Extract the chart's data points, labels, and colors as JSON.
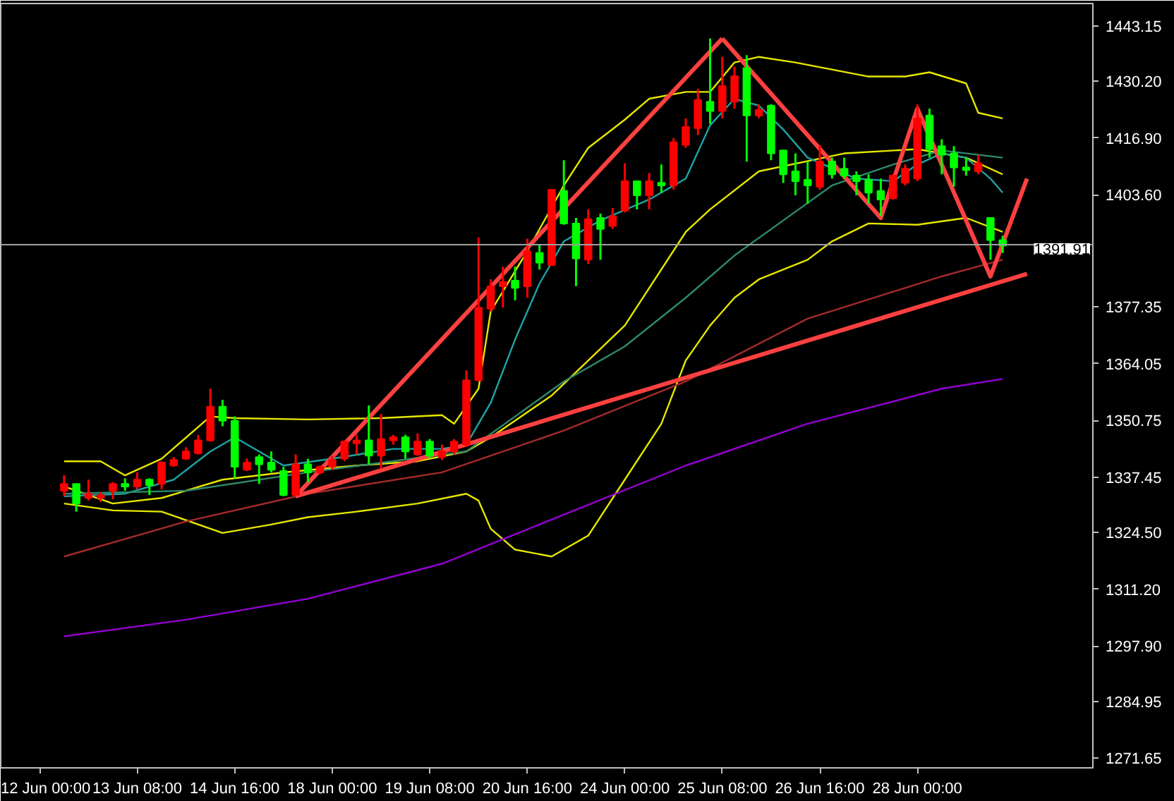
{
  "chart_data": {
    "type": "candlestick",
    "categories": [
      "12 Jun 00:00",
      null,
      null,
      null,
      null,
      null,
      null,
      null,
      "13 Jun 08:00",
      null,
      null,
      null,
      null,
      null,
      null,
      null,
      "14 Jun 16:00",
      null,
      null,
      null,
      null,
      null,
      null,
      null,
      "18 Jun 00:00",
      null,
      null,
      null,
      null,
      null,
      null,
      null,
      "19 Jun 08:00",
      null,
      null,
      null,
      null,
      null,
      null,
      null,
      "20 Jun 16:00",
      null,
      null,
      null,
      null,
      null,
      null,
      null,
      "24 Jun 00:00",
      null,
      null,
      null,
      null,
      null,
      null,
      null,
      "25 Jun 08:00",
      null,
      null,
      null,
      null,
      null,
      null,
      null,
      "26 Jun 16:00",
      null,
      null,
      null,
      null,
      null,
      null,
      null,
      "28 Jun 00:00",
      null,
      null,
      null,
      null,
      null,
      null,
      null,
      null,
      null
    ],
    "ohlc": [
      null,
      null,
      [
        1334.3,
        1337.9,
        1333.0,
        1335.9
      ],
      [
        1335.9,
        1335.9,
        1329.4,
        1331.3
      ],
      [
        1332.6,
        1336.9,
        1332.0,
        1333.6
      ],
      [
        1332.6,
        1334.0,
        1331.7,
        1333.3
      ],
      [
        1334.3,
        1336.3,
        1332.3,
        1335.9
      ],
      [
        1335.9,
        1337.2,
        1334.3,
        1335.3
      ],
      [
        1335.3,
        1338.6,
        1334.6,
        1336.9
      ],
      [
        1336.9,
        1337.2,
        1333.3,
        1335.6
      ],
      [
        1335.9,
        1341.2,
        1334.6,
        1340.9
      ],
      [
        1340.2,
        1342.2,
        1339.9,
        1341.5
      ],
      [
        1341.8,
        1344.5,
        1341.5,
        1343.5
      ],
      [
        1343.1,
        1347.4,
        1342.8,
        1346.1
      ],
      [
        1346.1,
        1358.2,
        1345.8,
        1354.0
      ],
      [
        1354.0,
        1355.6,
        1349.4,
        1350.7
      ],
      [
        1350.7,
        1351.7,
        1337.2,
        1339.9
      ],
      [
        1339.2,
        1341.8,
        1338.9,
        1340.9
      ],
      [
        1342.2,
        1342.8,
        1335.9,
        1340.5
      ],
      [
        1340.9,
        1343.5,
        1338.6,
        1339.2
      ],
      [
        1338.9,
        1339.9,
        1333.0,
        1333.3
      ],
      [
        1333.3,
        1342.8,
        1333.3,
        1340.5
      ],
      [
        1340.5,
        1341.8,
        1336.3,
        1338.6
      ],
      [
        1338.6,
        1340.2,
        1338.2,
        1339.9
      ],
      [
        1339.9,
        1342.5,
        1339.2,
        1341.5
      ],
      [
        1341.8,
        1346.1,
        1341.2,
        1345.8
      ],
      [
        1345.4,
        1347.4,
        1342.8,
        1346.1
      ],
      [
        1346.1,
        1354.3,
        1340.5,
        1342.5
      ],
      [
        1342.5,
        1352.3,
        1339.5,
        1346.4
      ],
      [
        1346.1,
        1347.4,
        1345.1,
        1346.8
      ],
      [
        1346.8,
        1347.4,
        1341.8,
        1343.5
      ],
      [
        1342.8,
        1347.7,
        1342.5,
        1345.8
      ],
      [
        1345.8,
        1346.4,
        1341.8,
        1342.5
      ],
      [
        1342.2,
        1345.1,
        1341.5,
        1343.5
      ],
      [
        1343.5,
        1346.4,
        1342.8,
        1345.8
      ],
      [
        1345.1,
        1362.5,
        1344.5,
        1360.2
      ],
      [
        1360.2,
        1393.6,
        1359.9,
        1377.2
      ],
      [
        1376.9,
        1383.8,
        1376.3,
        1382.2
      ],
      [
        1382.2,
        1386.8,
        1377.2,
        1383.2
      ],
      [
        1383.5,
        1386.8,
        1378.9,
        1381.8
      ],
      [
        1382.2,
        1393.3,
        1379.5,
        1390.4
      ],
      [
        1390.0,
        1392.0,
        1386.1,
        1387.7
      ],
      [
        1387.1,
        1404.8,
        1387.1,
        1404.8
      ],
      [
        1404.5,
        1411.7,
        1396.6,
        1396.9
      ],
      [
        1396.9,
        1398.2,
        1382.2,
        1388.7
      ],
      [
        1388.4,
        1400.2,
        1387.4,
        1397.9
      ],
      [
        1398.2,
        1399.2,
        1388.4,
        1395.6
      ],
      [
        1396.3,
        1400.5,
        1395.6,
        1398.6
      ],
      [
        1399.9,
        1411.0,
        1399.5,
        1406.8
      ],
      [
        1406.8,
        1406.8,
        1400.2,
        1403.5
      ],
      [
        1403.5,
        1408.7,
        1400.2,
        1406.8
      ],
      [
        1406.4,
        1410.7,
        1404.1,
        1405.8
      ],
      [
        1405.8,
        1416.9,
        1404.8,
        1415.9
      ],
      [
        1415.3,
        1421.5,
        1414.6,
        1419.5
      ],
      [
        1419.2,
        1428.4,
        1417.6,
        1425.8
      ],
      [
        1425.4,
        1440.2,
        1420.2,
        1423.2
      ],
      [
        1423.2,
        1435.9,
        1421.5,
        1429.1
      ],
      [
        1425.4,
        1433.6,
        1423.8,
        1431.4
      ],
      [
        1433.3,
        1436.3,
        1411.4,
        1422.2
      ],
      [
        1422.2,
        1424.8,
        1421.5,
        1423.5
      ],
      [
        1424.5,
        1424.8,
        1411.7,
        1413.3
      ],
      [
        1414.0,
        1414.0,
        1406.4,
        1408.4
      ],
      [
        1409.1,
        1413.3,
        1403.5,
        1406.8
      ],
      [
        1407.1,
        1411.4,
        1401.5,
        1405.8
      ],
      [
        1405.5,
        1415.3,
        1404.8,
        1411.4
      ],
      [
        1411.4,
        1412.3,
        1407.4,
        1408.4
      ],
      [
        1409.7,
        1412.3,
        1407.4,
        1408.1
      ],
      [
        1408.1,
        1409.1,
        1403.5,
        1406.8
      ],
      [
        1407.1,
        1408.4,
        1401.5,
        1404.1
      ],
      [
        1404.5,
        1407.4,
        1398.6,
        1402.5
      ],
      [
        1402.8,
        1408.4,
        1402.5,
        1408.1
      ],
      [
        1406.4,
        1410.7,
        1405.8,
        1409.7
      ],
      [
        1407.4,
        1424.8,
        1406.8,
        1421.5
      ],
      [
        1422.2,
        1423.8,
        1412.3,
        1414.3
      ],
      [
        1415.0,
        1416.6,
        1408.4,
        1413.0
      ],
      [
        1413.3,
        1415.0,
        1405.5,
        1410.0
      ],
      [
        1410.0,
        1412.3,
        1408.1,
        1409.4
      ],
      [
        1409.1,
        1413.0,
        1408.4,
        1411.0
      ],
      [
        1398.2,
        1398.2,
        1388.4,
        1393.0
      ],
      [
        1393.0,
        1394.0,
        1390.0,
        1391.7
      ],
      null,
      null
    ],
    "colors": [
      null,
      null,
      "#ff0000",
      "#00ff00",
      "#ff0000",
      "#ff0000",
      "#ff0000",
      "#00ff00",
      "#ff0000",
      "#00ff00",
      "#ff0000",
      "#ff0000",
      "#ff0000",
      "#ff0000",
      "#ff0000",
      "#00ff00",
      "#00ff00",
      "#ff0000",
      "#00ff00",
      "#00ff00",
      "#00ff00",
      "#ff0000",
      "#00ff00",
      "#ff0000",
      "#ff0000",
      "#ff0000",
      "#ff0000",
      "#00ff00",
      "#ff0000",
      "#ff0000",
      "#00ff00",
      "#ff0000",
      "#00ff00",
      "#ff0000",
      "#ff0000",
      "#ff0000",
      "#ff0000",
      "#ff0000",
      "#ff0000",
      "#00ff00",
      "#ff0000",
      "#00ff00",
      "#ff0000",
      "#00ff00",
      "#00ff00",
      "#ff0000",
      "#00ff00",
      "#ff0000",
      "#ff0000",
      "#00ff00",
      "#ff0000",
      "#00ff00",
      "#ff0000",
      "#ff0000",
      "#ff0000",
      "#00ff00",
      "#ff0000",
      "#ff0000",
      "#00ff00",
      "#ff0000",
      "#00ff00",
      "#00ff00",
      "#00ff00",
      "#00ff00",
      "#ff0000",
      "#00ff00",
      "#00ff00",
      "#00ff00",
      "#00ff00",
      "#00ff00",
      "#ff0000",
      "#ff0000",
      "#ff0000",
      "#00ff00",
      "#00ff00",
      "#00ff00",
      "#00ff00",
      "#ff0000",
      "#00ff00",
      "#00ff00",
      null,
      null
    ],
    "series": [
      {
        "type": "line",
        "color": "#e6e600",
        "values": [
          null,
          null,
          1341.2,
          null,
          null,
          1341.2,
          null,
          1337.9,
          null,
          null,
          1341.8,
          null,
          null,
          null,
          1351.7,
          null,
          1351.3,
          null,
          null,
          null,
          null,
          null,
          1351.0,
          null,
          null,
          null,
          null,
          null,
          1351.3,
          null,
          null,
          null,
          null,
          1352.0,
          1350.0,
          null,
          1358.2,
          1376.3,
          null,
          null,
          1390.4,
          null,
          null,
          1405.8,
          null,
          1414.6,
          null,
          null,
          1421.2,
          null,
          1426.1,
          null,
          null,
          1427.7,
          null,
          1427.7,
          null,
          1434.6,
          null,
          1435.9,
          null,
          null,
          1434.6,
          null,
          null,
          null,
          null,
          null,
          1431.3,
          null,
          null,
          1431.3,
          null,
          1432.3,
          null,
          null,
          1429.7,
          1422.8,
          null,
          1421.5,
          null,
          null
        ]
      },
      {
        "type": "line",
        "color": "#e6e600",
        "values": [
          null,
          null,
          1335.3,
          null,
          null,
          null,
          1331.3,
          null,
          null,
          null,
          1332.6,
          null,
          null,
          null,
          null,
          1336.9,
          null,
          null,
          null,
          null,
          1338.6,
          null,
          null,
          null,
          null,
          null,
          1340.2,
          null,
          null,
          null,
          null,
          1341.2,
          null,
          null,
          null,
          1343.5,
          null,
          1346.8,
          null,
          null,
          null,
          null,
          1356.6,
          null,
          null,
          null,
          null,
          null,
          1373.0,
          null,
          null,
          null,
          null,
          1394.9,
          null,
          1400.2,
          null,
          null,
          null,
          1409.1,
          null,
          null,
          null,
          null,
          null,
          null,
          1413.3,
          null,
          null,
          null,
          null,
          null,
          1414.3,
          null,
          null,
          null,
          1412.3,
          null,
          null,
          1408.4,
          null,
          null
        ]
      },
      {
        "type": "line",
        "color": "#e6e600",
        "values": [
          null,
          null,
          1331.3,
          null,
          null,
          null,
          1329.7,
          null,
          null,
          null,
          1329.4,
          null,
          null,
          null,
          null,
          1324.4,
          null,
          null,
          null,
          1326.4,
          null,
          null,
          1328.1,
          null,
          null,
          null,
          1329.4,
          null,
          null,
          null,
          null,
          1331.3,
          null,
          null,
          null,
          1333.6,
          1332.0,
          1325.4,
          null,
          1320.5,
          null,
          null,
          1318.9,
          null,
          null,
          1323.8,
          null,
          null,
          1336.9,
          null,
          null,
          1350.0,
          null,
          1364.8,
          null,
          1373.0,
          null,
          1379.5,
          null,
          1383.8,
          null,
          null,
          null,
          1388.4,
          null,
          1392.7,
          null,
          null,
          1396.9,
          null,
          null,
          null,
          1396.6,
          null,
          null,
          null,
          1398.2,
          null,
          null,
          1394.9,
          null,
          null
        ]
      },
      {
        "type": "line",
        "color": "#1fa3a3",
        "values": [
          null,
          null,
          1333.0,
          null,
          null,
          null,
          null,
          1333.6,
          null,
          null,
          null,
          1336.9,
          null,
          null,
          1343.5,
          null,
          1346.8,
          null,
          1343.5,
          null,
          1340.2,
          null,
          null,
          null,
          1341.8,
          null,
          null,
          null,
          null,
          1344.1,
          null,
          null,
          null,
          1344.1,
          null,
          1345.1,
          null,
          1354.9,
          null,
          1369.7,
          null,
          1382.8,
          null,
          1392.7,
          null,
          null,
          1397.6,
          null,
          null,
          null,
          1402.5,
          null,
          null,
          1407.4,
          null,
          1419.9,
          null,
          1426.1,
          null,
          1424.5,
          null,
          1418.9,
          null,
          1412.3,
          null,
          null,
          null,
          1407.4,
          null,
          null,
          1406.8,
          null,
          1410.7,
          null,
          1413.3,
          null,
          1412.3,
          null,
          1407.4,
          1404.1,
          null,
          null
        ]
      },
      {
        "type": "line",
        "color": "#2e8a6a",
        "values": [
          null,
          null,
          1333.6,
          null,
          null,
          null,
          null,
          null,
          null,
          null,
          null,
          null,
          1334.3,
          null,
          null,
          null,
          null,
          null,
          null,
          null,
          null,
          null,
          1338.6,
          null,
          null,
          null,
          null,
          null,
          null,
          null,
          null,
          null,
          null,
          null,
          null,
          1343.5,
          null,
          null,
          null,
          1351.7,
          null,
          null,
          null,
          1359.9,
          null,
          null,
          null,
          null,
          1368.1,
          null,
          null,
          null,
          null,
          1379.5,
          null,
          null,
          null,
          1389.4,
          null,
          null,
          null,
          1397.6,
          null,
          null,
          null,
          1405.8,
          null,
          null,
          null,
          null,
          1410.7,
          null,
          null,
          null,
          1414.0,
          null,
          null,
          null,
          null,
          1412.3,
          null,
          null
        ]
      },
      {
        "type": "line",
        "color": "#a52a2a",
        "values": [
          null,
          null,
          1318.9,
          null,
          null,
          null,
          null,
          null,
          null,
          null,
          null,
          null,
          1327.1,
          null,
          null,
          null,
          null,
          null,
          null,
          null,
          null,
          null,
          1333.6,
          null,
          null,
          null,
          null,
          null,
          null,
          null,
          null,
          null,
          null,
          1338.6,
          null,
          null,
          null,
          null,
          null,
          null,
          null,
          null,
          null,
          1348.4,
          null,
          null,
          null,
          null,
          null,
          null,
          null,
          null,
          null,
          1359.9,
          null,
          null,
          null,
          null,
          null,
          null,
          null,
          null,
          null,
          1374.6,
          null,
          null,
          null,
          null,
          null,
          null,
          null,
          null,
          null,
          null,
          1384.5,
          null,
          null,
          null,
          null,
          1388.4,
          null,
          null
        ]
      },
      {
        "type": "line",
        "color": "#9400d3",
        "values": [
          null,
          null,
          1300.2,
          null,
          null,
          null,
          null,
          null,
          null,
          null,
          null,
          null,
          1304.1,
          null,
          null,
          null,
          null,
          null,
          null,
          null,
          null,
          null,
          1309.0,
          null,
          null,
          null,
          null,
          null,
          null,
          null,
          null,
          null,
          null,
          1317.2,
          null,
          null,
          null,
          null,
          null,
          null,
          null,
          null,
          null,
          1328.7,
          null,
          null,
          null,
          null,
          null,
          null,
          null,
          null,
          null,
          1340.2,
          null,
          null,
          null,
          null,
          null,
          null,
          null,
          null,
          null,
          1350.0,
          null,
          null,
          null,
          null,
          null,
          null,
          null,
          null,
          null,
          null,
          1358.2,
          null,
          null,
          null,
          null,
          1360.5,
          null,
          null
        ]
      },
      {
        "type": "line",
        "color": "#ff4040",
        "values": [
          null,
          null,
          null,
          null,
          null,
          null,
          null,
          null,
          null,
          null,
          null,
          null,
          null,
          null,
          null,
          null,
          null,
          null,
          null,
          null,
          null,
          1333.0,
          null,
          null,
          null,
          null,
          null,
          null,
          null,
          null,
          null,
          null,
          null,
          null,
          null,
          null,
          null,
          null,
          null,
          null,
          null,
          null,
          null,
          null,
          null,
          null,
          null,
          null,
          null,
          null,
          null,
          null,
          null,
          null,
          null,
          null,
          1440.2,
          null,
          null,
          null,
          null,
          null,
          null,
          null,
          null,
          null,
          null,
          null,
          null,
          null,
          null,
          null,
          null,
          null,
          null,
          null,
          null,
          null,
          null,
          null,
          null,
          null
        ]
      },
      {
        "type": "line",
        "color": "#ff4040",
        "values": [
          null,
          null,
          null,
          null,
          null,
          null,
          null,
          null,
          null,
          null,
          null,
          null,
          null,
          null,
          null,
          null,
          null,
          null,
          null,
          null,
          null,
          1333.0,
          null,
          null,
          null,
          null,
          null,
          null,
          null,
          null,
          null,
          null,
          null,
          null,
          null,
          null,
          null,
          null,
          null,
          null,
          null,
          null,
          null,
          null,
          null,
          null,
          null,
          null,
          null,
          null,
          null,
          null,
          null,
          null,
          null,
          null,
          null,
          null,
          null,
          null,
          null,
          null,
          null,
          null,
          null,
          null,
          null,
          null,
          null,
          null,
          null,
          null,
          null,
          null,
          null,
          null,
          null,
          null,
          null,
          null,
          null,
          1385.1
        ]
      },
      {
        "type": "line",
        "color": "#ff4040",
        "values": [
          null,
          null,
          null,
          null,
          null,
          null,
          null,
          null,
          null,
          null,
          null,
          null,
          null,
          null,
          null,
          null,
          null,
          null,
          null,
          null,
          null,
          null,
          null,
          null,
          null,
          null,
          null,
          null,
          null,
          null,
          null,
          null,
          null,
          null,
          null,
          null,
          null,
          null,
          null,
          null,
          null,
          null,
          null,
          null,
          null,
          null,
          null,
          null,
          null,
          null,
          null,
          null,
          null,
          null,
          null,
          null,
          1440.2,
          null,
          null,
          null,
          null,
          null,
          null,
          null,
          null,
          null,
          null,
          null,
          null,
          1398.2,
          null,
          null,
          1423.8,
          null,
          null,
          null,
          null,
          null,
          1384.5,
          null,
          null,
          1407.4
        ]
      }
    ],
    "ylim": [
      1269.4,
      1448.4
    ],
    "yticks": [
      {
        "value": 1443.15,
        "label": "1443.15"
      },
      {
        "value": 1430.2,
        "label": "1430.20"
      },
      {
        "value": 1416.9,
        "label": "1416.90"
      },
      {
        "value": 1403.6,
        "label": "1403.60"
      },
      {
        "value": 1377.35,
        "label": "1377.35"
      },
      {
        "value": 1364.05,
        "label": "1364.05"
      },
      {
        "value": 1350.75,
        "label": "1350.75"
      },
      {
        "value": 1337.45,
        "label": "1337.45"
      },
      {
        "value": 1324.5,
        "label": "1324.50"
      },
      {
        "value": 1311.2,
        "label": "1311.20"
      },
      {
        "value": 1297.9,
        "label": "1297.90"
      },
      {
        "value": 1284.95,
        "label": "1284.95"
      },
      {
        "value": 1271.65,
        "label": "1271.65"
      }
    ],
    "ref_lines": [
      {
        "axis": "y",
        "value": 1391.91,
        "label": "1391.91",
        "color": "#a0a0a0"
      }
    ]
  }
}
